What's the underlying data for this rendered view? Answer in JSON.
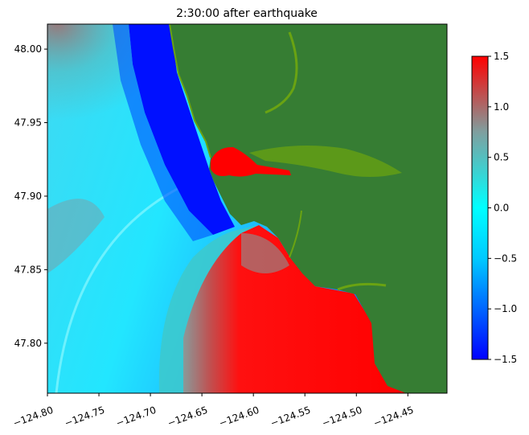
{
  "chart_data": {
    "type": "heatmap",
    "title": "2:30:00 after earthquake",
    "xlabel": "",
    "ylabel": "",
    "xlim": [
      -124.8,
      -124.412
    ],
    "ylim": [
      47.766,
      48.017
    ],
    "xticks": [
      -124.8,
      -124.75,
      -124.7,
      -124.65,
      -124.6,
      -124.55,
      -124.5,
      -124.45
    ],
    "xtick_labels": [
      "−124.80",
      "−124.75",
      "−124.70",
      "−124.65",
      "−124.60",
      "−124.55",
      "−124.50",
      "−124.45"
    ],
    "yticks": [
      47.8,
      47.85,
      47.9,
      47.95,
      48.0
    ],
    "ytick_labels": [
      "47.80",
      "47.85",
      "47.90",
      "47.95",
      "48.00"
    ],
    "colorbar": {
      "range": [
        -1.5,
        1.5
      ],
      "ticks": [
        -1.5,
        -1.0,
        -0.5,
        0.0,
        0.5,
        1.0,
        1.5
      ],
      "tick_labels": [
        "−1.5",
        "−1.0",
        "−0.5",
        "0.0",
        "0.5",
        "1.0",
        "1.5"
      ],
      "colors": [
        "#0000ff",
        "#00c8ff",
        "#00ffff",
        "#7f7f7f",
        "#ff0000"
      ]
    },
    "land_color": "#367d33",
    "wetland_color": "#6aa312"
  }
}
